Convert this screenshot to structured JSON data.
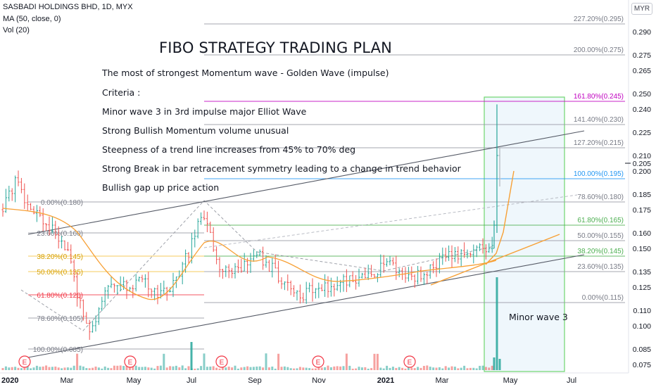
{
  "header": {
    "symbol": "SASBADI HOLDINGS BHD, 1D, MYX",
    "ma": "MA (50, close, 0)",
    "vol": "Vol (20)",
    "currency": "MYR"
  },
  "annotations": {
    "title": "FIBO STRATEGY TRADING PLAN",
    "lines": [
      "The most of strongest Momentum wave - Golden Wave (impulse)",
      "Criteria :",
      "Minor wave 3 in 3rd impulse major Elliot Wave",
      "Strong Bullish Momentum volume unusual",
      "Steepness of a trend line increases from 45% to 70% deg",
      "Strong Break in bar retracement symmetry leading to a change in trend behavior",
      "Bullish gap up price action"
    ],
    "minor_wave": "Minor wave 3"
  },
  "colors": {
    "up": "#26a69a",
    "down": "#ef5350",
    "bar_gray": "#787b86",
    "ma": "#f7a035",
    "fib_gray": "#9598a1",
    "fib_green": "#4caf50",
    "fib_blue": "#2196f3",
    "fib_magenta": "#c000c0",
    "fib_orange": "#f5c242",
    "fib_red": "#f23645",
    "box_border": "#6fd66f",
    "box_fill": "#e8f4fb"
  },
  "chart_data": {
    "type": "ohlc",
    "y_axis": {
      "ticks": [
        "0.290",
        "0.275",
        "0.265",
        "0.250",
        "0.240",
        "0.225",
        "0.210",
        "0.200",
        "0.185",
        "0.175",
        "0.160",
        "0.150",
        "0.135",
        "0.125",
        "0.110",
        "0.100",
        "0.085",
        "0.075"
      ],
      "current_price": "0.205",
      "range": [
        0.073,
        0.298
      ]
    },
    "x_axis": {
      "ticks": [
        "2020",
        "Mar",
        "May",
        "Jul",
        "Sep",
        "Nov",
        "2021",
        "Mar",
        "May",
        "Jul"
      ]
    },
    "fib_right": [
      {
        "label": "227.20%(0.295)",
        "value": 0.295,
        "color": "gray"
      },
      {
        "label": "200.00%(0.275)",
        "value": 0.275,
        "color": "gray"
      },
      {
        "label": "161.80%(0.245)",
        "value": 0.245,
        "color": "magenta"
      },
      {
        "label": "141.40%(0.230)",
        "value": 0.23,
        "color": "gray"
      },
      {
        "label": "127.20%(0.215)",
        "value": 0.215,
        "color": "gray"
      },
      {
        "label": "100.00%(0.195)",
        "value": 0.195,
        "color": "blue"
      },
      {
        "label": "78.60%(0.180)",
        "value": 0.18,
        "color": "gray"
      },
      {
        "label": "61.80%(0.165)",
        "value": 0.165,
        "color": "green"
      },
      {
        "label": "50.00%(0.155)",
        "value": 0.155,
        "color": "gray"
      },
      {
        "label": "38.20%(0.145)",
        "value": 0.145,
        "color": "green"
      },
      {
        "label": "23.60%(0.135)",
        "value": 0.135,
        "color": "gray"
      },
      {
        "label": "0.00%(0.115)",
        "value": 0.115,
        "color": "gray"
      }
    ],
    "fib_left": [
      {
        "label": "0.00%(0.180)",
        "value": 0.18,
        "color": "gray"
      },
      {
        "label": "23.60%(0.160)",
        "value": 0.16,
        "color": "gray"
      },
      {
        "label": "38.20%(0.145)",
        "value": 0.145,
        "color": "orange"
      },
      {
        "label": "50.00%(0.135)",
        "value": 0.135,
        "color": "orange"
      },
      {
        "label": "61.80%(0.120)",
        "value": 0.12,
        "color": "red"
      },
      {
        "label": "78.60%(0.105)",
        "value": 0.105,
        "color": "gray"
      },
      {
        "label": "100.00%(0.085)",
        "value": 0.085,
        "color": "gray"
      }
    ],
    "earnings_markers": [
      "E",
      "E",
      "E",
      "E",
      "E"
    ]
  }
}
